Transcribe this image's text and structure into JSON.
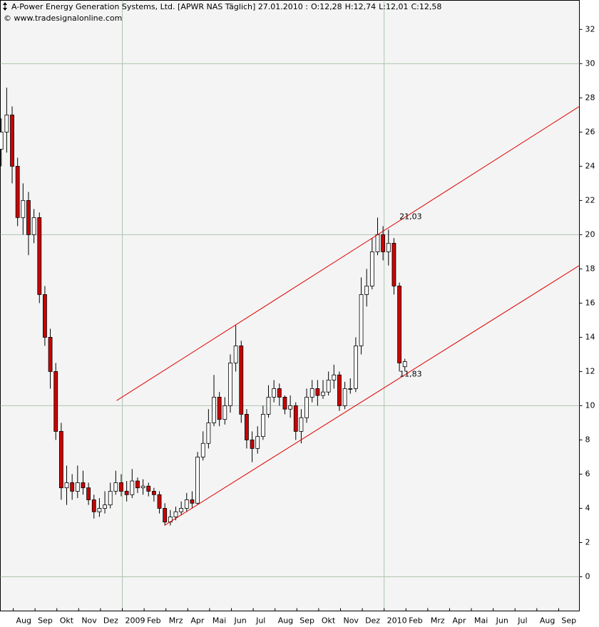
{
  "chart_data": {
    "type": "candlestick",
    "title": "A-Power Energy Generation Systems, Ltd. [APWR NAS  Täglich] 27.01.2010 :",
    "ohlc_labels": [
      {
        "text": "O:12,28",
        "color": "#008000"
      },
      {
        "text": "H:12,74",
        "color": "#000000"
      },
      {
        "text": "L:12,01",
        "color": "#000000"
      },
      {
        "text": "C:12,58",
        "color": "#008000"
      }
    ],
    "source": "© www.tradesignalonline.com",
    "up_color": "#ffffff",
    "down_color": "#cc0000",
    "xlim": [
      0.41,
      26.95
    ],
    "ylim": [
      -2,
      33.7
    ],
    "xticks": [
      {
        "value": 1,
        "label": "Aug"
      },
      {
        "value": 2,
        "label": "Sep"
      },
      {
        "value": 3,
        "label": "Okt"
      },
      {
        "value": 4,
        "label": "Nov"
      },
      {
        "value": 5,
        "label": "Dez"
      },
      {
        "value": 6,
        "label": "2009"
      },
      {
        "value": 7,
        "label": "Feb"
      },
      {
        "value": 8,
        "label": "Mrz"
      },
      {
        "value": 9,
        "label": "Apr"
      },
      {
        "value": 10,
        "label": "Mai"
      },
      {
        "value": 11,
        "label": "Jun"
      },
      {
        "value": 12,
        "label": "Jul"
      },
      {
        "value": 13,
        "label": "Aug"
      },
      {
        "value": 14,
        "label": "Sep"
      },
      {
        "value": 15,
        "label": "Okt"
      },
      {
        "value": 16,
        "label": "Nov"
      },
      {
        "value": 17,
        "label": "Dez"
      },
      {
        "value": 18,
        "label": "2010"
      },
      {
        "value": 19,
        "label": "Feb"
      },
      {
        "value": 20,
        "label": "Mrz"
      },
      {
        "value": 21,
        "label": "Apr"
      },
      {
        "value": 22,
        "label": "Mai"
      },
      {
        "value": 23,
        "label": "Jun"
      },
      {
        "value": 24,
        "label": "Jul"
      },
      {
        "value": 25,
        "label": "Aug"
      },
      {
        "value": 26,
        "label": "Sep"
      }
    ],
    "yticks": [
      0,
      2,
      4,
      6,
      8,
      10,
      12,
      14,
      16,
      18,
      20,
      22,
      24,
      26,
      28,
      30,
      32
    ],
    "ygrid_step": 10,
    "candles": {
      "x": [
        0.45,
        0.7,
        0.95,
        1.2,
        1.45,
        1.7,
        1.95,
        2.2,
        2.45,
        2.7,
        2.95,
        3.2,
        3.45,
        3.7,
        3.95,
        4.2,
        4.45,
        4.7,
        4.95,
        5.2,
        5.45,
        5.7,
        5.95,
        6.2,
        6.45,
        6.7,
        6.95,
        7.2,
        7.45,
        7.7,
        7.95,
        8.2,
        8.45,
        8.7,
        8.95,
        9.2,
        9.45,
        9.7,
        9.95,
        10.2,
        10.45,
        10.7,
        10.95,
        11.2,
        11.45,
        11.7,
        11.95,
        12.2,
        12.45,
        12.7,
        12.95,
        13.2,
        13.45,
        13.7,
        13.95,
        14.2,
        14.45,
        14.7,
        14.95,
        15.2,
        15.45,
        15.7,
        15.95,
        16.2,
        16.45,
        16.7,
        16.95,
        17.2,
        17.45,
        17.7,
        17.95,
        18.2,
        18.45,
        18.7,
        18.95
      ],
      "open": [
        25,
        26,
        27,
        24,
        21,
        22,
        20,
        21,
        16.5,
        14,
        12,
        8.5,
        5.2,
        5.5,
        5,
        5.5,
        5.2,
        4.5,
        3.8,
        4,
        4.2,
        5,
        5.5,
        5,
        4.8,
        5.6,
        5.2,
        5.3,
        5,
        4.8,
        4,
        3.2,
        3.5,
        3.8,
        4,
        4.5,
        4.3,
        7,
        7.8,
        9,
        10.5,
        9.2,
        10,
        12.5,
        13.5,
        9.5,
        8,
        7.5,
        8.2,
        9.5,
        10.5,
        11,
        10.5,
        9.8,
        10,
        8.5,
        9.3,
        10.5,
        11,
        10.6,
        10.8,
        11.5,
        11.8,
        10,
        11,
        11,
        13.5,
        16.5,
        17,
        19,
        20,
        19,
        19.5,
        17,
        12.28
      ],
      "high": [
        26.8,
        28.6,
        27.5,
        24.5,
        23,
        22.5,
        21.5,
        21.3,
        17,
        14.5,
        12.5,
        9,
        6.5,
        6,
        6.5,
        6.2,
        5.5,
        4.8,
        4.6,
        5,
        5.5,
        6.2,
        6,
        5.6,
        6.3,
        5.8,
        5.7,
        5.5,
        5.2,
        5,
        4.3,
        3.9,
        4.1,
        4.4,
        4.9,
        5,
        7.3,
        8.5,
        9.8,
        11.8,
        10.8,
        10.5,
        13,
        14.7,
        13.8,
        9.8,
        8.5,
        8.8,
        10,
        11.2,
        11.5,
        11.3,
        10.6,
        10.6,
        10.2,
        9.8,
        11,
        11.5,
        11.5,
        11.5,
        12,
        12.4,
        12,
        11.4,
        11.6,
        14,
        17.5,
        18,
        19.8,
        21,
        20.5,
        20.3,
        19.8,
        17.2,
        12.74
      ],
      "low": [
        24,
        24.8,
        23,
        20.5,
        20,
        18.8,
        19.5,
        16,
        13.5,
        11,
        8,
        4.5,
        4.2,
        4.5,
        4.6,
        4.8,
        4.2,
        3.4,
        3.5,
        3.7,
        4,
        4.8,
        4.7,
        4.4,
        4.6,
        4.9,
        4.8,
        4.7,
        4.4,
        3.7,
        3,
        3,
        3.3,
        3.6,
        3.8,
        4,
        4.2,
        6.8,
        7.5,
        8.8,
        8.8,
        8.9,
        9.6,
        12,
        9,
        7.5,
        6.7,
        7.2,
        8,
        9.3,
        10.2,
        10,
        9.5,
        9.3,
        8,
        7.8,
        9,
        10.2,
        10,
        10.4,
        10.6,
        11,
        9.7,
        9.8,
        10.7,
        10.8,
        13,
        15.8,
        16.8,
        18.8,
        18.5,
        18.2,
        16.5,
        12,
        12.01
      ],
      "close": [
        26,
        27,
        24,
        21,
        22,
        20,
        21,
        16.5,
        14,
        12,
        8.5,
        5.2,
        5.5,
        5,
        5.5,
        5.2,
        4.5,
        3.8,
        4,
        4.2,
        5,
        5.5,
        5,
        4.8,
        5.6,
        5.2,
        5.3,
        5,
        4.8,
        4,
        3.2,
        3.5,
        3.8,
        4,
        4.5,
        4.3,
        7,
        7.8,
        9,
        10.5,
        9.2,
        10,
        12.5,
        13.5,
        9.5,
        8,
        7.5,
        8.2,
        9.5,
        10.5,
        11,
        10.5,
        9.8,
        10,
        8.5,
        9.3,
        10.5,
        11,
        10.6,
        10.8,
        11.5,
        11.8,
        10,
        11,
        11,
        13.5,
        16.5,
        17,
        19,
        20,
        19,
        19.5,
        17,
        12.5,
        12.58
      ]
    },
    "channels": [
      {
        "color": "#e00000",
        "x": [
          5.74,
          26.95
        ],
        "y": [
          10.3,
          27.5
        ]
      },
      {
        "color": "#e00000",
        "x": [
          7.93,
          26.95
        ],
        "y": [
          3.0,
          18.2
        ]
      }
    ],
    "channel_labels": {
      "color": "#e00000",
      "x": [
        18.7,
        18.7
      ],
      "values": [
        21.03,
        11.83
      ],
      "value_labels": [
        "21,03",
        "11,83"
      ]
    }
  }
}
